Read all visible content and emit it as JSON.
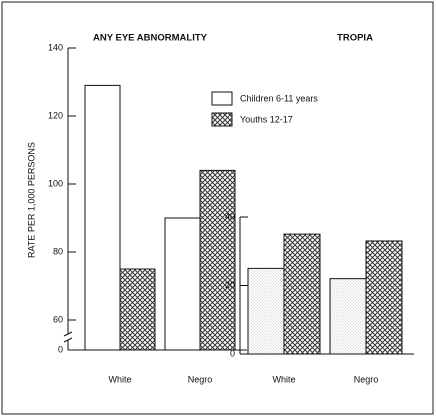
{
  "chart_data": [
    {
      "type": "bar",
      "title": "ANY EYE ABNORMALITY",
      "y_label": "RATE PER 1,000 PERSONS",
      "categories": [
        "White",
        "Negro"
      ],
      "series": [
        {
          "name": "Children 6-11 years",
          "color": "#ffffff",
          "pattern": "none",
          "values": [
            129,
            90
          ]
        },
        {
          "name": "Youths 12-17",
          "color": "#333333",
          "pattern": "crosshatch",
          "values": [
            75,
            104
          ]
        }
      ],
      "ylim": [
        0,
        140
      ],
      "yticks": [
        0,
        60,
        80,
        100,
        120,
        140
      ],
      "axis_break": true,
      "legend": "upper right"
    },
    {
      "type": "bar",
      "title": "TROPIA",
      "categories": [
        "White",
        "Negro"
      ],
      "series": [
        {
          "color": "#999999",
          "pattern": "stipple",
          "values": [
            25,
            22
          ]
        },
        {
          "color": "#333333",
          "pattern": "crosshatch",
          "values": [
            35,
            33
          ]
        }
      ],
      "ylim": [
        0,
        40
      ],
      "yticks": [
        0,
        20,
        40
      ]
    }
  ]
}
